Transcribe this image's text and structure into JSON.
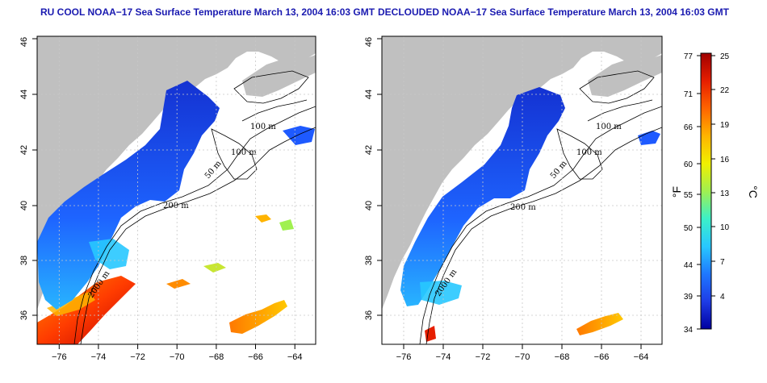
{
  "titles": {
    "left": "RU COOL NOAA−17 Sea Surface Temperature March 13, 2004 16:03 GMT",
    "right": "DECLOUDED NOAA−17 Sea Surface Temperature March 13, 2004 16:03 GMT"
  },
  "axes": {
    "lon_labels": [
      "−76",
      "−74",
      "−72",
      "−70",
      "−68",
      "−66",
      "−64"
    ],
    "lat_labels": [
      "36",
      "38",
      "40",
      "42",
      "44",
      "46"
    ]
  },
  "contour_labels": [
    "100 m",
    "100 m",
    "50 m",
    "200 m",
    "2000 m",
    "200 m"
  ],
  "colorbar": {
    "fahrenheit_labels": [
      "77",
      "71",
      "66",
      "60",
      "55",
      "50",
      "44",
      "39",
      "34"
    ],
    "celsius_labels": [
      "25",
      "22",
      "19",
      "16",
      "13",
      "10",
      "7",
      "4"
    ],
    "unit_f": "°F",
    "unit_c": "°C",
    "colors": [
      "#0000a0",
      "#1e3ce6",
      "#1e78ff",
      "#28c8ff",
      "#3cf0c8",
      "#a0f050",
      "#f0f000",
      "#ffb400",
      "#ff6400",
      "#e61e00",
      "#a00000"
    ]
  },
  "colors": {
    "land": "#c0c0c0",
    "title": "#1a1ab0",
    "grid": "#c8c8c8"
  }
}
